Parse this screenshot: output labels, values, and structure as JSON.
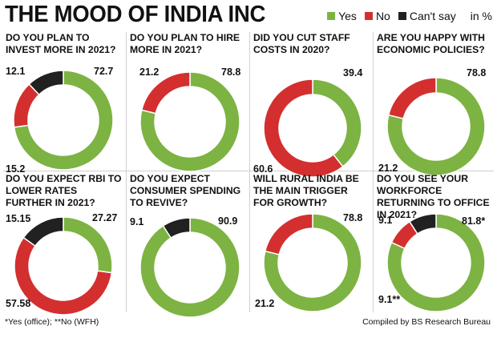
{
  "title": "THE MOOD OF INDIA INC",
  "legend": {
    "items": [
      {
        "label": "Yes",
        "color": "#7cb342"
      },
      {
        "label": "No",
        "color": "#d32f2f"
      },
      {
        "label": "Can't say",
        "color": "#212121"
      }
    ],
    "unit": "in %"
  },
  "colors": {
    "yes": "#7cb342",
    "no": "#d32f2f",
    "cantsay": "#212121"
  },
  "chart_data": [
    {
      "type": "pie",
      "title": "DO YOU PLAN TO INVEST MORE IN 2021?",
      "series": [
        {
          "name": "Yes",
          "value": 72.7,
          "label": "72.7"
        },
        {
          "name": "No",
          "value": 15.2,
          "label": "15.2"
        },
        {
          "name": "Can't say",
          "value": 12.1,
          "label": "12.1"
        }
      ]
    },
    {
      "type": "pie",
      "title": "DO YOU PLAN TO HIRE MORE IN 2021?",
      "series": [
        {
          "name": "Yes",
          "value": 78.8,
          "label": "78.8"
        },
        {
          "name": "No",
          "value": 21.2,
          "label": "21.2"
        }
      ]
    },
    {
      "type": "pie",
      "title": "DID YOU CUT STAFF COSTS IN 2020?",
      "series": [
        {
          "name": "Yes",
          "value": 39.4,
          "label": "39.4"
        },
        {
          "name": "No",
          "value": 60.6,
          "label": "60.6"
        }
      ]
    },
    {
      "type": "pie",
      "title": "ARE YOU HAPPY WITH ECONOMIC POLICIES?",
      "series": [
        {
          "name": "Yes",
          "value": 78.8,
          "label": "78.8"
        },
        {
          "name": "No",
          "value": 21.2,
          "label": "21.2"
        }
      ]
    },
    {
      "type": "pie",
      "title": "DO YOU EXPECT RBI TO LOWER RATES FURTHER IN 2021?",
      "series": [
        {
          "name": "Yes",
          "value": 27.27,
          "label": "27.27"
        },
        {
          "name": "No",
          "value": 57.58,
          "label": "57.58"
        },
        {
          "name": "Can't say",
          "value": 15.15,
          "label": "15.15"
        }
      ]
    },
    {
      "type": "pie",
      "title": "DO YOU EXPECT CONSUMER SPENDING TO REVIVE?",
      "series": [
        {
          "name": "Yes",
          "value": 90.9,
          "label": "90.9"
        },
        {
          "name": "Can't say",
          "value": 9.1,
          "label": "9.1"
        }
      ]
    },
    {
      "type": "pie",
      "title": "WILL RURAL INDIA BE THE MAIN TRIGGER FOR GROWTH?",
      "series": [
        {
          "name": "Yes",
          "value": 78.8,
          "label": "78.8"
        },
        {
          "name": "No",
          "value": 21.2,
          "label": "21.2"
        }
      ]
    },
    {
      "type": "pie",
      "title": "DO YOU SEE YOUR WORKFORCE RETURNING TO OFFICE IN 2021?",
      "series": [
        {
          "name": "Yes",
          "value": 81.8,
          "label": "81.8*"
        },
        {
          "name": "No",
          "value": 9.1,
          "label": "9.1**"
        },
        {
          "name": "Can't say",
          "value": 9.1,
          "label": "9.1"
        }
      ]
    }
  ],
  "footnote": "*Yes (office); **No (WFH)",
  "credit": "Compiled by BS Research Bureau"
}
